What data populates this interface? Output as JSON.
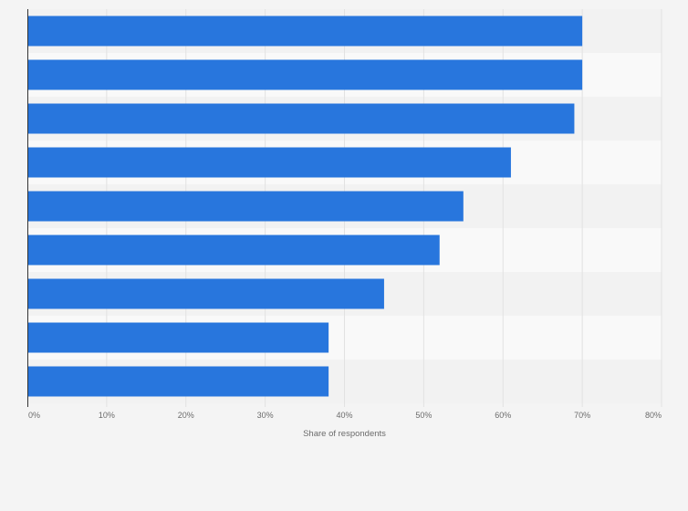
{
  "chart_data": {
    "type": "bar",
    "orientation": "horizontal",
    "categories": [
      "",
      "",
      "",
      "",
      "",
      "",
      "",
      "",
      ""
    ],
    "values": [
      70,
      70,
      69,
      61,
      55,
      52,
      45,
      38,
      38
    ],
    "unit": "%",
    "title": "",
    "xlabel": "Share of respondents",
    "ylabel": "",
    "xlim": [
      0,
      80
    ],
    "x_ticks": [
      0,
      10,
      20,
      30,
      40,
      50,
      60,
      70,
      80
    ],
    "x_tick_labels": [
      "0%",
      "10%",
      "20%",
      "30%",
      "40%",
      "50%",
      "60%",
      "70%",
      "80%"
    ],
    "grid": true,
    "legend": "none",
    "colors": {
      "bar": "#2876dd",
      "band_dark": "#f2f2f2",
      "band_light": "#f9f9f9",
      "gridline": "#e2e2e2",
      "axis": "#333333",
      "text": "#6b6b6b",
      "background": "#f4f4f4"
    }
  }
}
